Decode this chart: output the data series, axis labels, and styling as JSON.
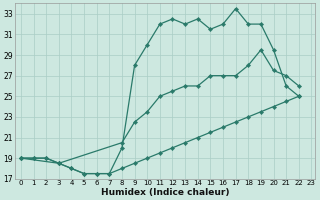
{
  "xlabel": "Humidex (Indice chaleur)",
  "bg_color": "#cde8e0",
  "grid_color": "#aacec6",
  "line_color": "#2a7a6a",
  "xlim_min": -0.5,
  "xlim_max": 23.3,
  "ylim_min": 17,
  "ylim_max": 34,
  "yticks": [
    17,
    19,
    21,
    23,
    25,
    27,
    29,
    31,
    33
  ],
  "xticks": [
    0,
    1,
    2,
    3,
    4,
    5,
    6,
    7,
    8,
    9,
    10,
    11,
    12,
    13,
    14,
    15,
    16,
    17,
    18,
    19,
    20,
    21,
    22,
    23
  ],
  "curve_top_x": [
    0,
    1,
    2,
    3,
    4,
    5,
    6,
    7,
    8,
    9,
    10,
    11,
    12,
    13,
    14,
    15,
    16,
    17,
    18,
    19,
    20,
    21,
    22
  ],
  "curve_top_y": [
    19,
    19,
    19,
    18.5,
    18,
    17.5,
    17.5,
    17.5,
    20,
    28,
    30,
    32,
    32.5,
    32,
    32.5,
    31.5,
    32,
    33.5,
    32,
    32,
    29.5,
    26,
    25
  ],
  "curve_mid_x": [
    0,
    3,
    8,
    9,
    10,
    11,
    12,
    13,
    14,
    15,
    16,
    17,
    18,
    19,
    20,
    21,
    22
  ],
  "curve_mid_y": [
    19,
    18.5,
    20.5,
    22.5,
    23.5,
    25,
    25.5,
    26,
    26,
    27,
    27,
    27,
    28,
    29.5,
    27.5,
    27,
    26
  ],
  "curve_bot_x": [
    0,
    1,
    2,
    3,
    4,
    5,
    6,
    7,
    8,
    9,
    10,
    11,
    12,
    13,
    14,
    15,
    16,
    17,
    18,
    19,
    20,
    21,
    22
  ],
  "curve_bot_y": [
    19,
    19,
    19,
    18.5,
    18,
    17.5,
    17.5,
    17.5,
    18,
    18.5,
    19,
    19.5,
    20,
    20.5,
    21,
    21.5,
    22,
    22.5,
    23,
    23.5,
    24,
    24.5,
    25
  ]
}
